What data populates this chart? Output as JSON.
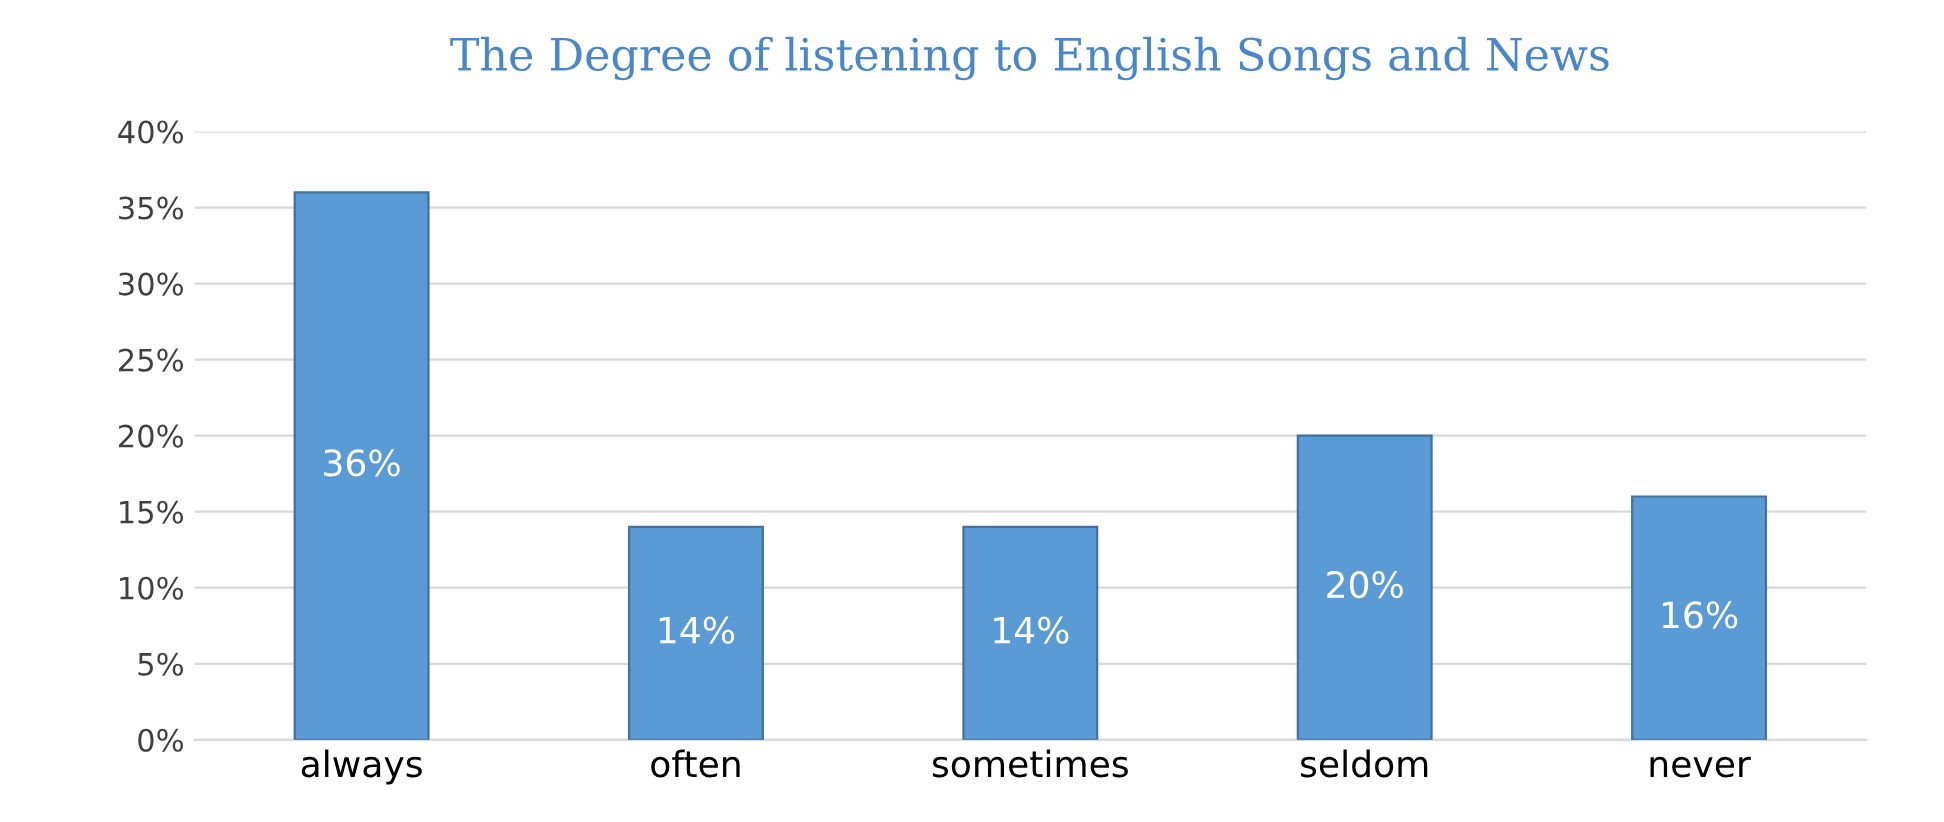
{
  "chart_data": {
    "type": "bar",
    "title": "The Degree of listening to English Songs and News",
    "categories": [
      "always",
      "often",
      "sometimes",
      "seldom",
      "never"
    ],
    "values": [
      36,
      14,
      14,
      20,
      16
    ],
    "value_labels": [
      "36%",
      "14%",
      "14%",
      "20%",
      "16%"
    ],
    "color": "#5b9bd5",
    "ylim": [
      0,
      40
    ],
    "yticks": [
      {
        "value": 0,
        "label": "0%"
      },
      {
        "value": 5,
        "label": "5%"
      },
      {
        "value": 10,
        "label": "10%"
      },
      {
        "value": 15,
        "label": "15%"
      },
      {
        "value": 20,
        "label": "20%"
      },
      {
        "value": 25,
        "label": "25%"
      },
      {
        "value": 30,
        "label": "30%"
      },
      {
        "value": 35,
        "label": "35%"
      },
      {
        "value": 40,
        "label": "40%"
      }
    ],
    "grid": "y"
  }
}
